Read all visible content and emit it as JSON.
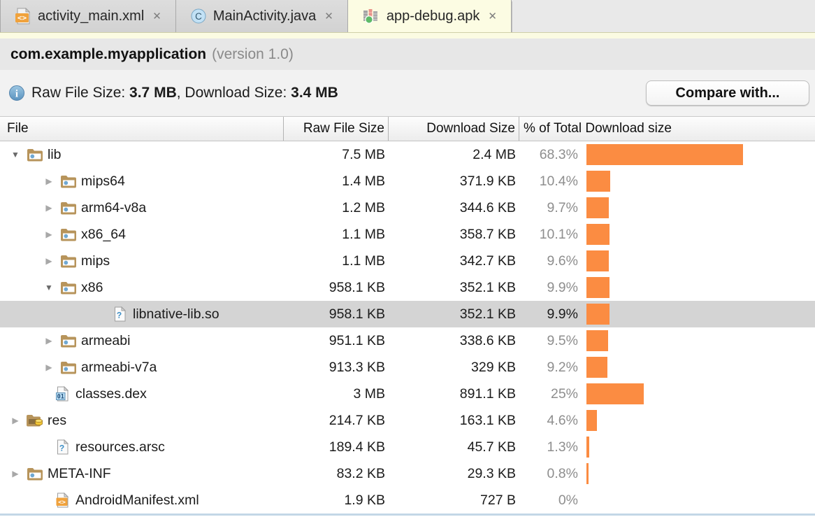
{
  "colors": {
    "bar_orange": "#FB8C42",
    "selected_row_bg": "#D4D4D4",
    "active_tab_bg": "#FCFCE3",
    "folder_tan": "#B7945B",
    "info_blue": "#5A93BF"
  },
  "glyphs": {
    "close": "✕",
    "expanded": "▼",
    "collapsed": "▶"
  },
  "tabs": [
    {
      "label": "activity_main.xml",
      "icon": "xml-file",
      "active": false
    },
    {
      "label": "MainActivity.java",
      "icon": "java-class",
      "active": false
    },
    {
      "label": "app-debug.apk",
      "icon": "apk",
      "active": true
    }
  ],
  "header": {
    "package_name": "com.example.myapplication",
    "version_text": "(version 1.0)"
  },
  "summary": {
    "label_raw": "Raw File Size: ",
    "value_raw": "3.7 MB",
    "label_download": ", Download Size: ",
    "value_download": "3.4 MB"
  },
  "compare_button_label": "Compare with...",
  "table": {
    "columns": [
      "File",
      "Raw File Size",
      "Download Size",
      "% of Total Download size"
    ]
  },
  "rows": [
    {
      "name": "lib",
      "icon": "folder",
      "arrow": "expanded",
      "level": 0,
      "raw": "7.5 MB",
      "download": "2.4 MB",
      "pct": "68.3%",
      "pct_value": 68.3,
      "selected": false
    },
    {
      "name": "mips64",
      "icon": "folder",
      "arrow": "collapsed",
      "level": 1,
      "raw": "1.4 MB",
      "download": "371.9 KB",
      "pct": "10.4%",
      "pct_value": 10.4,
      "selected": false
    },
    {
      "name": "arm64-v8a",
      "icon": "folder",
      "arrow": "collapsed",
      "level": 1,
      "raw": "1.2 MB",
      "download": "344.6 KB",
      "pct": "9.7%",
      "pct_value": 9.7,
      "selected": false
    },
    {
      "name": "x86_64",
      "icon": "folder",
      "arrow": "collapsed",
      "level": 1,
      "raw": "1.1 MB",
      "download": "358.7 KB",
      "pct": "10.1%",
      "pct_value": 10.1,
      "selected": false
    },
    {
      "name": "mips",
      "icon": "folder",
      "arrow": "collapsed",
      "level": 1,
      "raw": "1.1 MB",
      "download": "342.7 KB",
      "pct": "9.6%",
      "pct_value": 9.6,
      "selected": false
    },
    {
      "name": "x86",
      "icon": "folder",
      "arrow": "expanded",
      "level": 1,
      "raw": "958.1 KB",
      "download": "352.1 KB",
      "pct": "9.9%",
      "pct_value": 9.9,
      "selected": false
    },
    {
      "name": "libnative-lib.so",
      "icon": "file-unknown",
      "arrow": null,
      "level": 2,
      "raw": "958.1 KB",
      "download": "352.1 KB",
      "pct": "9.9%",
      "pct_value": 9.9,
      "selected": true
    },
    {
      "name": "armeabi",
      "icon": "folder",
      "arrow": "collapsed",
      "level": 1,
      "raw": "951.1 KB",
      "download": "338.6 KB",
      "pct": "9.5%",
      "pct_value": 9.5,
      "selected": false
    },
    {
      "name": "armeabi-v7a",
      "icon": "folder",
      "arrow": "collapsed",
      "level": 1,
      "raw": "913.3 KB",
      "download": "329 KB",
      "pct": "9.2%",
      "pct_value": 9.2,
      "selected": false
    },
    {
      "name": "classes.dex",
      "icon": "file-dex",
      "arrow": null,
      "level": 0,
      "raw": "3 MB",
      "download": "891.1 KB",
      "pct": "25%",
      "pct_value": 25,
      "selected": false
    },
    {
      "name": "res",
      "icon": "folder-res",
      "arrow": "collapsed",
      "level": 0,
      "raw": "214.7 KB",
      "download": "163.1 KB",
      "pct": "4.6%",
      "pct_value": 4.6,
      "selected": false
    },
    {
      "name": "resources.arsc",
      "icon": "file-unknown",
      "arrow": null,
      "level": 0,
      "raw": "189.4 KB",
      "download": "45.7 KB",
      "pct": "1.3%",
      "pct_value": 1.3,
      "selected": false
    },
    {
      "name": "META-INF",
      "icon": "folder",
      "arrow": "collapsed",
      "level": 0,
      "raw": "83.2 KB",
      "download": "29.3 KB",
      "pct": "0.8%",
      "pct_value": 0.8,
      "selected": false
    },
    {
      "name": "AndroidManifest.xml",
      "icon": "file-xml",
      "arrow": null,
      "level": 0,
      "raw": "1.9 KB",
      "download": "727 B",
      "pct": "0%",
      "pct_value": 0,
      "selected": false
    }
  ]
}
